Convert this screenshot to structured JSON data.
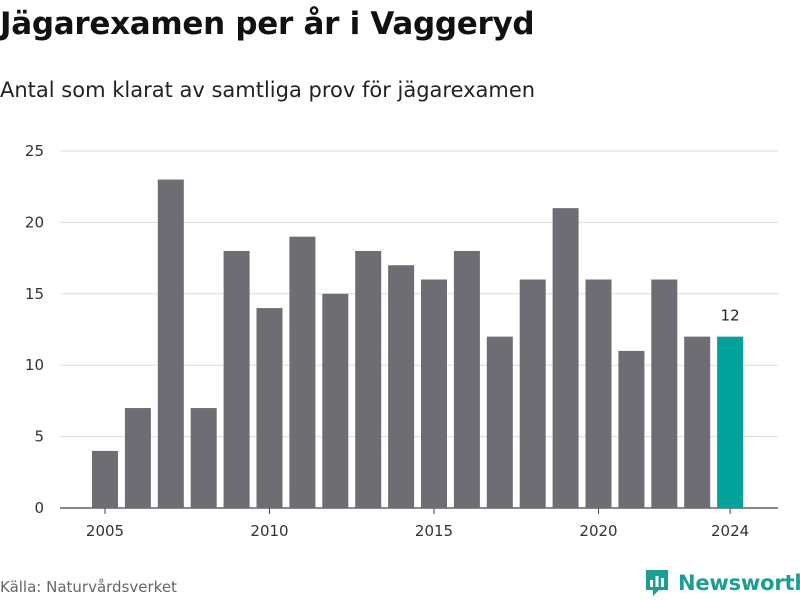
{
  "title": "Jägarexamen per år i Vaggeryd",
  "subtitle": "Antal som klarat av samtliga prov för jägarexamen",
  "source": "Källa: Naturvårdsverket",
  "brand": {
    "name": "Newsworthy",
    "icon": "newsworthy-logo-icon"
  },
  "colors": {
    "bar": "#6e6d73",
    "highlight": "#00a39a",
    "grid": "#dddddd",
    "brand": "#1b9f95"
  },
  "chart_data": {
    "type": "bar",
    "title": "Jägarexamen per år i Vaggeryd",
    "subtitle": "Antal som klarat av samtliga prov för jägarexamen",
    "categories": [
      2005,
      2006,
      2007,
      2008,
      2009,
      2010,
      2011,
      2012,
      2013,
      2014,
      2015,
      2016,
      2017,
      2018,
      2019,
      2020,
      2021,
      2022,
      2023,
      2024
    ],
    "values": [
      4,
      7,
      23,
      7,
      18,
      14,
      19,
      15,
      18,
      17,
      16,
      18,
      12,
      16,
      21,
      16,
      11,
      16,
      12,
      12
    ],
    "highlight_index": 19,
    "data_labels": [
      {
        "index": 19,
        "text": "12"
      }
    ],
    "x_ticks": [
      2005,
      2010,
      2015,
      2020,
      2024
    ],
    "y_ticks": [
      0,
      5,
      10,
      15,
      20,
      25
    ],
    "ylim": [
      0,
      25
    ],
    "grid": true,
    "legend": "none"
  }
}
